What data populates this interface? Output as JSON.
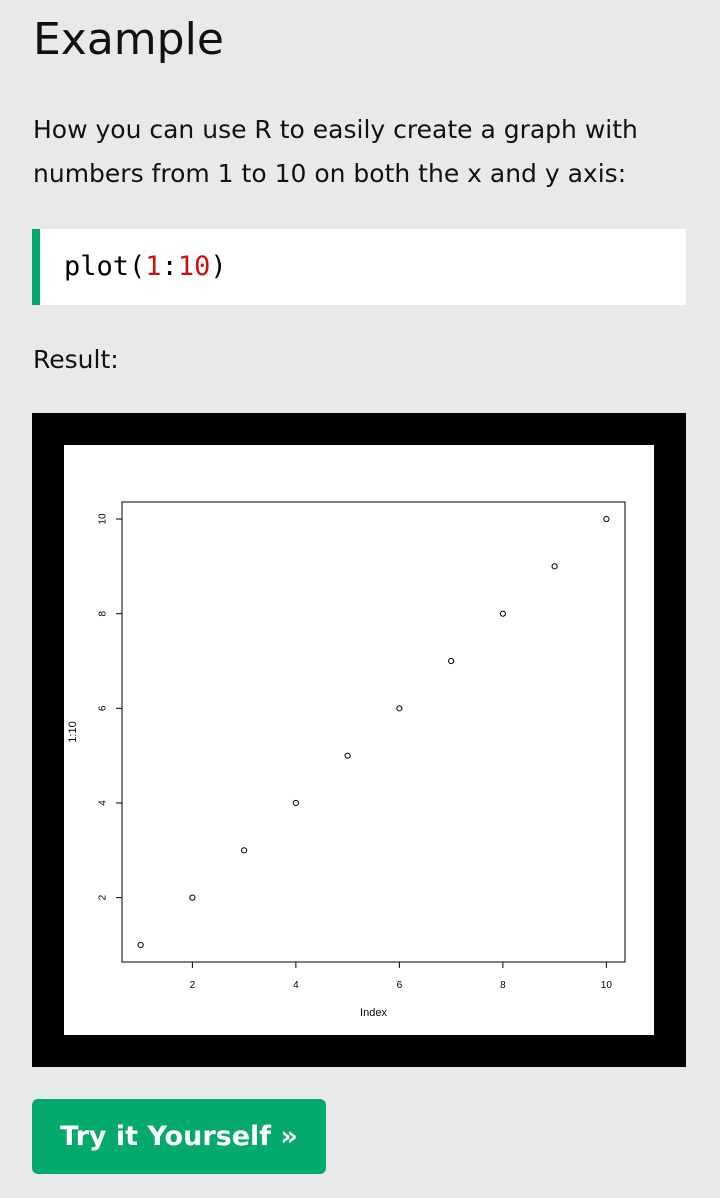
{
  "heading": "Example",
  "intro_text": "How you can use R to easily create a graph with numbers from 1 to 10 on both the x and y axis:",
  "code": {
    "fn": "plot(",
    "arg_start": "1",
    "sep": ":",
    "arg_end": "10",
    "close": ")"
  },
  "result_label": "Result:",
  "button_label": "Try it Yourself »",
  "colors": {
    "accent": "#04aa6d",
    "number": "#cc1010",
    "page_bg": "#e7e9eb"
  },
  "chart_data": {
    "type": "scatter",
    "x": [
      1,
      2,
      3,
      4,
      5,
      6,
      7,
      8,
      9,
      10
    ],
    "y": [
      1,
      2,
      3,
      4,
      5,
      6,
      7,
      8,
      9,
      10
    ],
    "xlabel": "Index",
    "ylabel": "1:10",
    "xticks": [
      2,
      4,
      6,
      8,
      10
    ],
    "yticks": [
      2,
      4,
      6,
      8,
      10
    ],
    "xlim": [
      0.64,
      10.36
    ],
    "ylim": [
      0.64,
      10.36
    ],
    "grid": false,
    "marker": "open-circle"
  }
}
